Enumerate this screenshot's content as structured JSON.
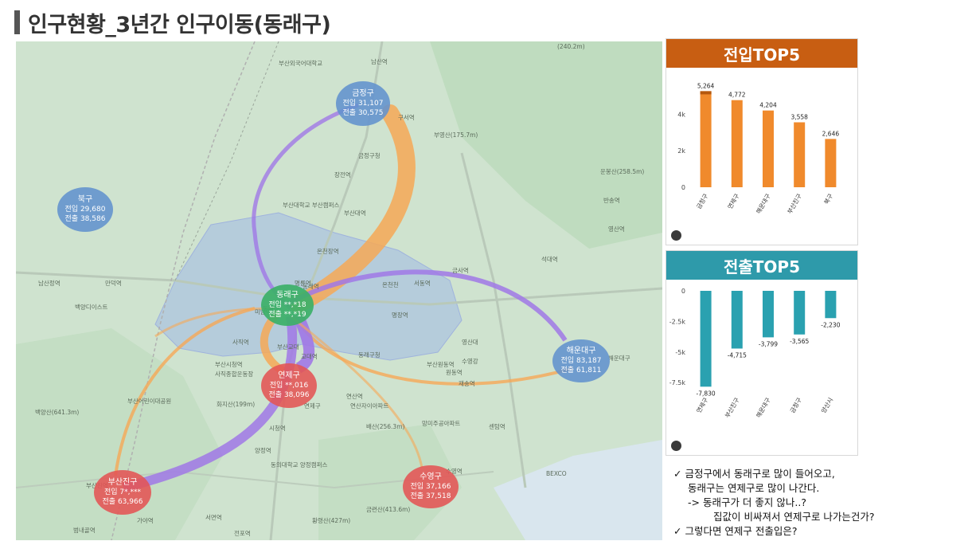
{
  "title": "인구현황_3년간 인구이동(동래구)",
  "map": {
    "labels": [
      "남산역",
      "부산외국어대학교",
      "부영산(175.7m)",
      "금정구청",
      "장전역",
      "부산대학교 부산캠퍼스",
      "부산대역",
      "온천장역",
      "명륜역",
      "동래역",
      "교대역",
      "부산교대",
      "사직역",
      "부산시청역",
      "사직종합운동장",
      "화지산(199m)",
      "연제구",
      "연산역",
      "연산자이아파트",
      "배산(256.3m)",
      "망미주공아파트",
      "수영역",
      "금련산(413.6m)",
      "황령산(427m)",
      "시청역",
      "양정역",
      "동의대학교 양정캠퍼스",
      "부산진역",
      "범내골역",
      "서면역",
      "전포역",
      "가야역",
      "남산정역",
      "만덕역",
      "백양디이스트",
      "백양산(641.3m)",
      "부산어린이대공원",
      "온천천",
      "미남역",
      "동래구청",
      "영산대",
      "원동역",
      "석대역",
      "금사역",
      "서동역",
      "영산역",
      "해운대구",
      "운봉산(258.5m)",
      "(240.2m)",
      "반송역",
      "BEXCO",
      "수영강",
      "부산원동역",
      "재송역",
      "센텀역",
      "구서역",
      "동래역",
      "명장역"
    ],
    "districts": [
      {
        "name": "금정구",
        "in": "전입 31,107",
        "out": "전출 30,575"
      },
      {
        "name": "북구",
        "in": "전입 29,680",
        "out": "전출 38,586"
      },
      {
        "name": "동래구",
        "in": "전입 **,*18",
        "out": "전출 **,*19"
      },
      {
        "name": "해운대구",
        "in": "전입 83,187",
        "out": "전출 61,811"
      },
      {
        "name": "연제구",
        "in": "전입 **,016",
        "out": "전출 38,096"
      },
      {
        "name": "부산진구",
        "in": "전입 7*,***",
        "out": "전출 63,966"
      },
      {
        "name": "수영구",
        "in": "전입 37,166",
        "out": "전출 37,518"
      }
    ]
  },
  "chart_data": [
    {
      "type": "bar",
      "title": "전입TOP5",
      "categories": [
        "금정구",
        "연제구",
        "해운대구",
        "부산진구",
        "북구"
      ],
      "values": [
        5264,
        4772,
        4204,
        3558,
        2646
      ],
      "data_labels": [
        "5,264",
        "4,772",
        "4,204",
        "3,558",
        "2,646"
      ],
      "yticks": [
        "0",
        "2k",
        "4k"
      ],
      "ylim": [
        0,
        5500
      ],
      "color": "#f08a2c"
    },
    {
      "type": "bar",
      "title": "전출TOP5",
      "categories": [
        "연제구",
        "부산진구",
        "해운대구",
        "금정구",
        "양산시"
      ],
      "values": [
        -7830,
        -4715,
        -3799,
        -3565,
        -2230
      ],
      "data_labels": [
        "-7,830",
        "-4,715",
        "-3,799",
        "-3,565",
        "-2,230"
      ],
      "yticks": [
        "0",
        "-2.5k",
        "-5k",
        "-7.5k"
      ],
      "ylim": [
        -8200,
        0
      ],
      "color": "#2aa1b0"
    }
  ],
  "notes": [
    "✓ 금정구에서 동래구로 많이 들어오고,",
    "동래구는 연제구로 많이 나간다.",
    "-> 동래구가 더 좋지 않나..?",
    "집값이 비싸져서 연제구로 나가는건가?",
    "✓ 그렇다면 연제구 전출입은?"
  ]
}
